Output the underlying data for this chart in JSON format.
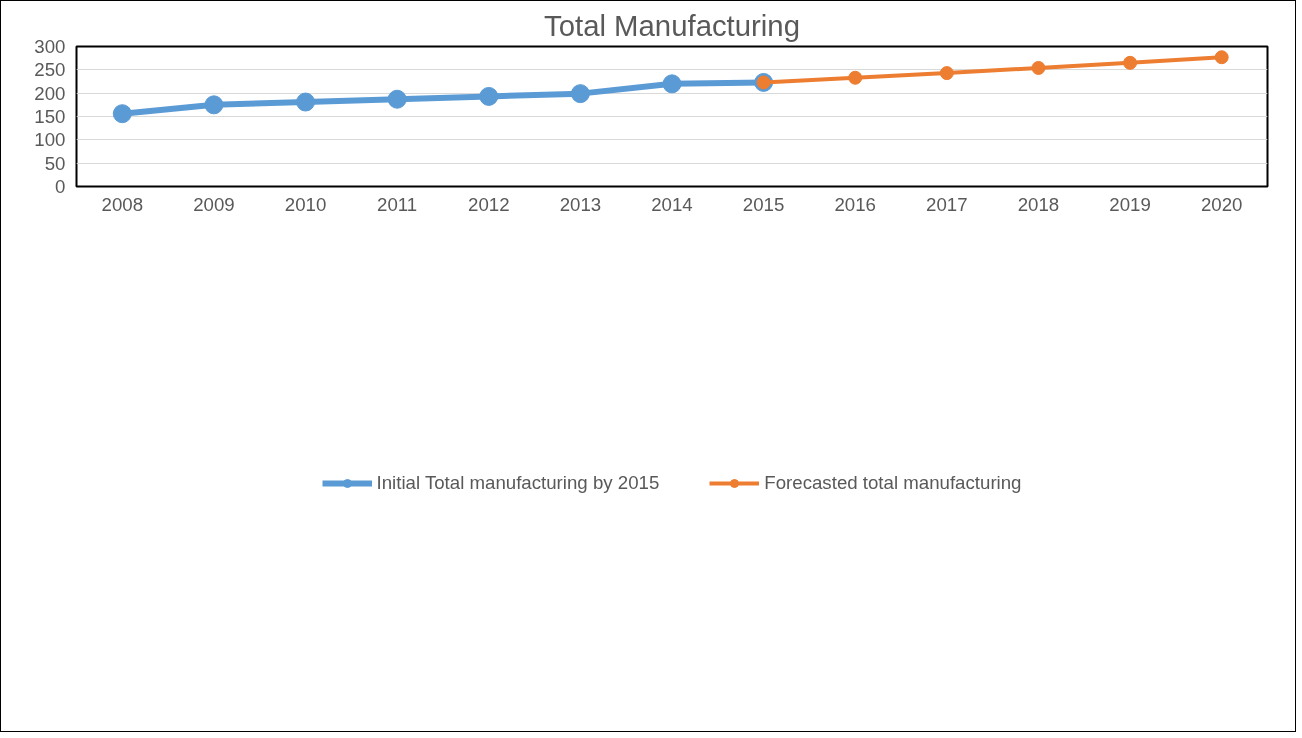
{
  "chart_data": {
    "type": "line",
    "title": "Total Manufacturing",
    "categories": [
      "2008",
      "2009",
      "2010",
      "2011",
      "2012",
      "2013",
      "2014",
      "2015",
      "2016",
      "2017",
      "2018",
      "2019",
      "2020"
    ],
    "series": [
      {
        "name": "Initial Total manufacturing by 2015",
        "color": "#5b9bd5",
        "values": [
          156,
          175,
          181,
          187,
          193,
          199,
          220,
          223,
          null,
          null,
          null,
          null,
          null
        ]
      },
      {
        "name": "Forecasted total manufacturing",
        "color": "#ed7d31",
        "values": [
          null,
          null,
          null,
          null,
          null,
          null,
          null,
          223,
          233,
          243,
          254,
          265,
          277
        ]
      }
    ],
    "ylim": [
      0,
      300
    ],
    "yticks": [
      0,
      50,
      100,
      150,
      200,
      250,
      300
    ],
    "grid": "y",
    "legend": "bottom",
    "marker": "circle",
    "line_style": "solid"
  }
}
